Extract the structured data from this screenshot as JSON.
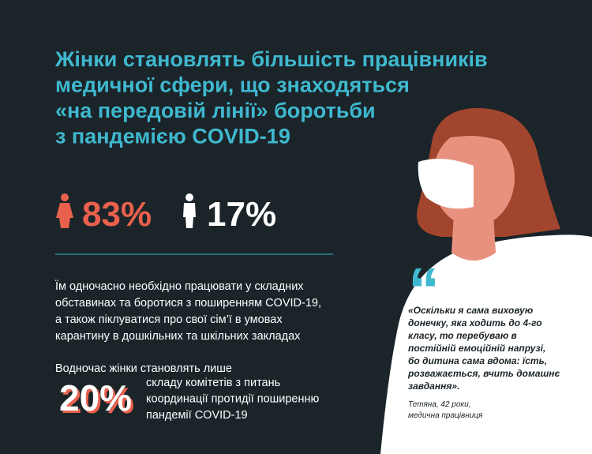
{
  "title_lines": [
    "Жінки становлять більшість працівників",
    "медичної сфери, що знаходяться",
    "«на передовій лінії» боротьби",
    "з пандемією COVID-19"
  ],
  "stats": {
    "women": "83%",
    "men": "17%"
  },
  "paragraph_lines": [
    "Їм одночасно необхідно працювати у складних",
    "обставинах та боротися з поширенням COVID-19,",
    "а також піклуватися про свої сім’ї в умовах",
    "карантину в дошкільних та шкільних закладах"
  ],
  "committee": {
    "intro": "Водночас жінки становлять лише",
    "value": "20%",
    "lines": [
      "складу комітетів з питань",
      "координації протидії поширенню",
      "пандемії COVID-19"
    ]
  },
  "quote": {
    "mark": "“",
    "lines": [
      "«Оскільки я сама виховую",
      "донечку, яка ходить до 4-го",
      "класу, то перебуваю в",
      "постійній емоційній напрузі,",
      "бо дитина сама вдома: їсть,",
      "розважається, вчить домашнє",
      "завдання»."
    ],
    "author": [
      "Тетяна, 42 роки,",
      "медична працівниця"
    ]
  }
}
